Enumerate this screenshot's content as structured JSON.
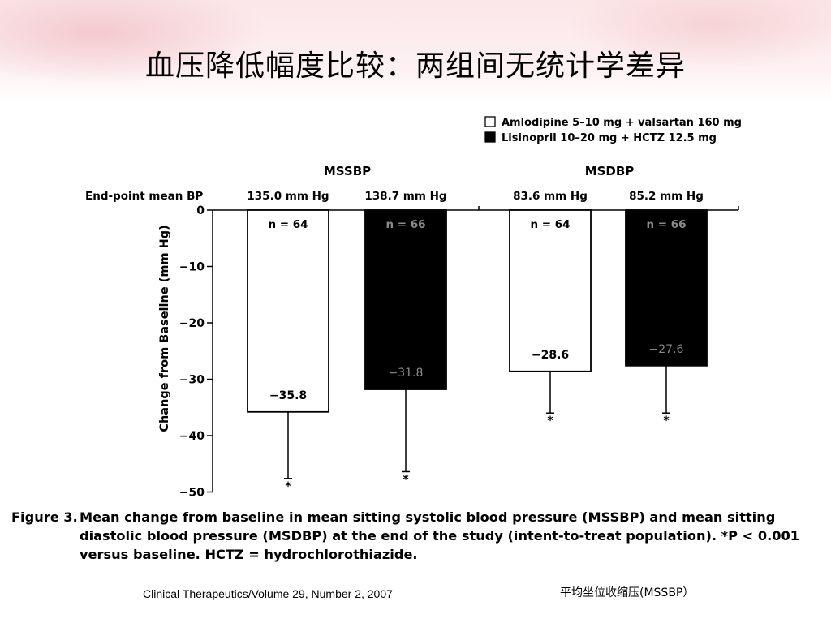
{
  "slide": {
    "title": "血压降低幅度比较：两组间无统计学差异",
    "footer_source": "Clinical Therapeutics/Volume 29, Number 2, 2007",
    "footer_note": "平均坐位收缩压(MSSBP）"
  },
  "caption": {
    "label": "Figure 3.",
    "text": "Mean change from baseline in mean sitting systolic blood pressure (MSSBP) and mean sitting diastolic blood pressure (MSDBP) at the end of the study (intent-to-treat population). *P < 0.001 versus baseline. HCTZ = hydrochlorothiazide."
  },
  "chart_data": {
    "type": "bar",
    "title": "",
    "ylabel": "Change from Baseline (mm Hg)",
    "ylim": [
      -50,
      0
    ],
    "yticks": [
      0,
      -10,
      -20,
      -30,
      -40,
      -50
    ],
    "ytick_labels": [
      "0",
      "−10",
      "−20",
      "−30",
      "−40",
      "−50"
    ],
    "row_label": "End-point mean BP",
    "groups": [
      {
        "name": "MSSBP",
        "bars": [
          {
            "series": "Amlodipine 5–10 mg + valsartan 160 mg",
            "endpoint": "135.0 mm Hg",
            "value": -35.8,
            "label": "−35.8",
            "n_label": "n = 64",
            "error": 11.8,
            "significance": "*"
          },
          {
            "series": "Lisinopril 10–20 mg + HCTZ 12.5 mg",
            "endpoint": "138.7 mm Hg",
            "value": -31.8,
            "label": "−31.8",
            "n_label": "n = 66",
            "error": 14.6,
            "significance": "*"
          }
        ]
      },
      {
        "name": "MSDBP",
        "bars": [
          {
            "series": "Amlodipine 5–10 mg + valsartan 160 mg",
            "endpoint": "83.6 mm Hg",
            "value": -28.6,
            "label": "−28.6",
            "n_label": "n = 64",
            "error": 7.4,
            "significance": "*"
          },
          {
            "series": "Lisinopril 10–20 mg + HCTZ 12.5 mg",
            "endpoint": "85.2 mm Hg",
            "value": -27.6,
            "label": "−27.6",
            "n_label": "n = 66",
            "error": 8.4,
            "significance": "*"
          }
        ]
      }
    ],
    "legend": {
      "placement": "top-right",
      "entries": [
        {
          "label": "Amlodipine 5–10 mg + valsartan 160 mg",
          "fill": "#ffffff"
        },
        {
          "label": "Lisinopril 10–20 mg + HCTZ 12.5 mg",
          "fill": "#000000"
        }
      ]
    },
    "grid": false
  }
}
